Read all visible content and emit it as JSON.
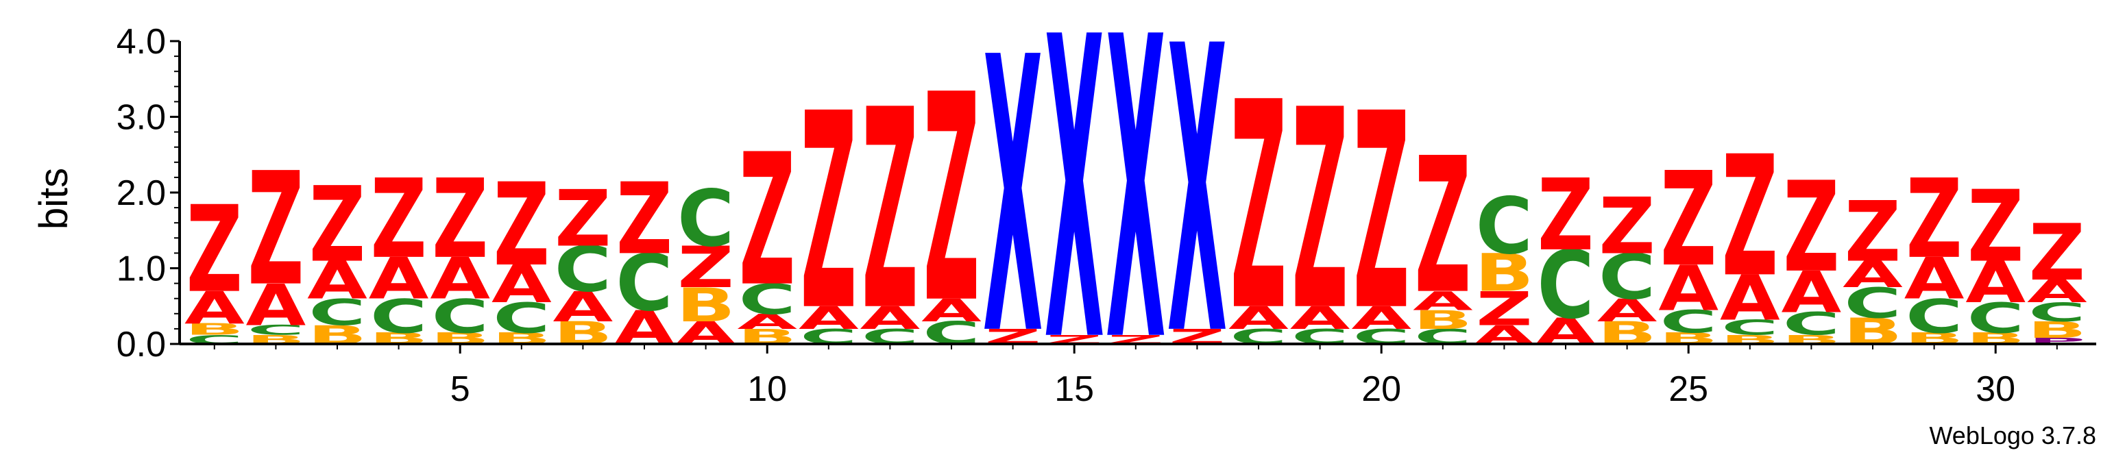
{
  "chart_data": {
    "type": "sequence-logo",
    "ylabel": "bits",
    "ylim": [
      0,
      4.0
    ],
    "yticks": [
      {
        "value": 0.0,
        "label": "0.0"
      },
      {
        "value": 1.0,
        "label": "1.0"
      },
      {
        "value": 2.0,
        "label": "2.0"
      },
      {
        "value": 3.0,
        "label": "3.0"
      },
      {
        "value": 4.0,
        "label": "4.0"
      }
    ],
    "xlim": [
      1,
      31
    ],
    "xticks": [
      {
        "value": 5,
        "label": "5"
      },
      {
        "value": 10,
        "label": "10"
      },
      {
        "value": 15,
        "label": "15"
      },
      {
        "value": 20,
        "label": "20"
      },
      {
        "value": 25,
        "label": "25"
      },
      {
        "value": 30,
        "label": "30"
      }
    ],
    "footer": "WebLogo 3.7.8",
    "colors": {
      "Z": "#ff0000",
      "A": "#ff0000",
      "C": "#228b22",
      "B": "#ffa500",
      "X": "#0000ff",
      "Q": "#ff0000",
      "P": "#800080"
    },
    "positions": [
      {
        "pos": 1,
        "stack": [
          [
            "C",
            0.12
          ],
          [
            "B",
            0.15
          ],
          [
            "A",
            0.43
          ],
          [
            "Z",
            1.15
          ]
        ]
      },
      {
        "pos": 2,
        "stack": [
          [
            "B",
            0.12
          ],
          [
            "C",
            0.13
          ],
          [
            "A",
            0.55
          ],
          [
            "Z",
            1.5
          ]
        ]
      },
      {
        "pos": 3,
        "stack": [
          [
            "B",
            0.25
          ],
          [
            "C",
            0.35
          ],
          [
            "A",
            0.5
          ],
          [
            "Z",
            1.0
          ]
        ]
      },
      {
        "pos": 4,
        "stack": [
          [
            "B",
            0.15
          ],
          [
            "C",
            0.45
          ],
          [
            "A",
            0.55
          ],
          [
            "Z",
            1.05
          ]
        ]
      },
      {
        "pos": 5,
        "stack": [
          [
            "B",
            0.15
          ],
          [
            "C",
            0.45
          ],
          [
            "A",
            0.55
          ],
          [
            "Z",
            1.05
          ]
        ]
      },
      {
        "pos": 6,
        "stack": [
          [
            "B",
            0.15
          ],
          [
            "C",
            0.4
          ],
          [
            "A",
            0.5
          ],
          [
            "Z",
            1.1
          ]
        ]
      },
      {
        "pos": 7,
        "stack": [
          [
            "B",
            0.3
          ],
          [
            "A",
            0.4
          ],
          [
            "C",
            0.6
          ],
          [
            "Z",
            0.75
          ]
        ]
      },
      {
        "pos": 8,
        "stack": [
          [
            "A",
            0.45
          ],
          [
            "C",
            0.75
          ],
          [
            "Z",
            0.95
          ]
        ]
      },
      {
        "pos": 9,
        "stack": [
          [
            "A",
            0.3
          ],
          [
            "B",
            0.45
          ],
          [
            "Z",
            0.55
          ],
          [
            "C",
            0.75
          ]
        ]
      },
      {
        "pos": 10,
        "stack": [
          [
            "B",
            0.2
          ],
          [
            "A",
            0.2
          ],
          [
            "C",
            0.4
          ],
          [
            "Z",
            1.75
          ]
        ]
      },
      {
        "pos": 11,
        "stack": [
          [
            "C",
            0.2
          ],
          [
            "A",
            0.3
          ],
          [
            "Z",
            2.6
          ]
        ]
      },
      {
        "pos": 12,
        "stack": [
          [
            "C",
            0.2
          ],
          [
            "A",
            0.3
          ],
          [
            "Z",
            2.65
          ]
        ]
      },
      {
        "pos": 13,
        "stack": [
          [
            "C",
            0.3
          ],
          [
            "A",
            0.3
          ],
          [
            "Z",
            2.75
          ]
        ]
      },
      {
        "pos": 14,
        "stack": [
          [
            "Z",
            0.2
          ],
          [
            "X",
            3.65
          ]
        ]
      },
      {
        "pos": 15,
        "stack": [
          [
            "Z",
            0.12
          ],
          [
            "X",
            4.0
          ]
        ]
      },
      {
        "pos": 16,
        "stack": [
          [
            "Z",
            0.12
          ],
          [
            "X",
            4.0
          ]
        ]
      },
      {
        "pos": 17,
        "stack": [
          [
            "Z",
            0.2
          ],
          [
            "X",
            3.8
          ]
        ]
      },
      {
        "pos": 18,
        "stack": [
          [
            "C",
            0.2
          ],
          [
            "A",
            0.3
          ],
          [
            "Z",
            2.75
          ]
        ]
      },
      {
        "pos": 19,
        "stack": [
          [
            "C",
            0.2
          ],
          [
            "A",
            0.3
          ],
          [
            "Z",
            2.65
          ]
        ]
      },
      {
        "pos": 20,
        "stack": [
          [
            "C",
            0.2
          ],
          [
            "A",
            0.3
          ],
          [
            "Z",
            2.6
          ]
        ]
      },
      {
        "pos": 21,
        "stack": [
          [
            "C",
            0.2
          ],
          [
            "B",
            0.25
          ],
          [
            "A",
            0.25
          ],
          [
            "Z",
            1.8
          ]
        ]
      },
      {
        "pos": 22,
        "stack": [
          [
            "A",
            0.25
          ],
          [
            "Z",
            0.45
          ],
          [
            "B",
            0.5
          ],
          [
            "C",
            0.75
          ]
        ]
      },
      {
        "pos": 23,
        "stack": [
          [
            "A",
            0.35
          ],
          [
            "C",
            0.9
          ],
          [
            "Z",
            0.95
          ]
        ]
      },
      {
        "pos": 24,
        "stack": [
          [
            "B",
            0.3
          ],
          [
            "A",
            0.3
          ],
          [
            "C",
            0.6
          ],
          [
            "Z",
            0.75
          ]
        ]
      },
      {
        "pos": 25,
        "stack": [
          [
            "B",
            0.15
          ],
          [
            "C",
            0.3
          ],
          [
            "A",
            0.6
          ],
          [
            "Z",
            1.25
          ]
        ]
      },
      {
        "pos": 26,
        "stack": [
          [
            "B",
            0.12
          ],
          [
            "C",
            0.2
          ],
          [
            "A",
            0.6
          ],
          [
            "Z",
            1.6
          ]
        ]
      },
      {
        "pos": 27,
        "stack": [
          [
            "B",
            0.12
          ],
          [
            "C",
            0.3
          ],
          [
            "A",
            0.55
          ],
          [
            "Z",
            1.2
          ]
        ]
      },
      {
        "pos": 28,
        "stack": [
          [
            "B",
            0.35
          ],
          [
            "C",
            0.4
          ],
          [
            "A",
            0.35
          ],
          [
            "Z",
            0.8
          ]
        ]
      },
      {
        "pos": 29,
        "stack": [
          [
            "B",
            0.15
          ],
          [
            "C",
            0.45
          ],
          [
            "A",
            0.55
          ],
          [
            "Z",
            1.05
          ]
        ]
      },
      {
        "pos": 30,
        "stack": [
          [
            "B",
            0.15
          ],
          [
            "C",
            0.4
          ],
          [
            "A",
            0.55
          ],
          [
            "Z",
            0.95
          ]
        ]
      },
      {
        "pos": 31,
        "stack": [
          [
            "P",
            0.08
          ],
          [
            "B",
            0.22
          ],
          [
            "C",
            0.25
          ],
          [
            "A",
            0.3
          ],
          [
            "Z",
            0.75
          ]
        ]
      }
    ]
  }
}
